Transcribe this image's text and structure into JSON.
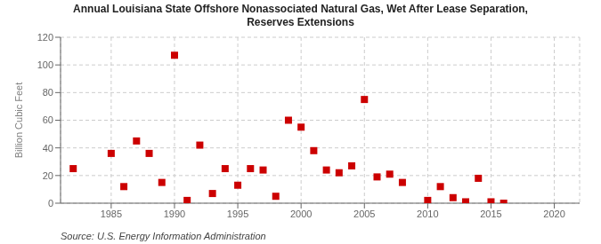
{
  "chart_data": {
    "type": "scatter",
    "title": "Annual Louisiana State Offshore Nonassociated Natural Gas, Wet After Lease Separation,\nReserves Extensions",
    "y_label": "Billion Cubic Feet",
    "annotations": [
      "Source: U.S. Energy Information Administration"
    ],
    "x": [
      1982,
      1985,
      1986,
      1987,
      1988,
      1989,
      1990,
      1991,
      1992,
      1993,
      1994,
      1995,
      1996,
      1997,
      1998,
      1999,
      2000,
      2001,
      2002,
      2003,
      2004,
      2005,
      2006,
      2007,
      2008,
      2010,
      2011,
      2012,
      2013,
      2014,
      2015,
      2016
    ],
    "values": [
      25,
      36,
      12,
      45,
      36,
      15,
      107,
      2,
      42,
      7,
      25,
      13,
      25,
      24,
      5,
      60,
      55,
      38,
      24,
      22,
      27,
      75,
      19,
      21,
      15,
      2,
      12,
      4,
      1,
      18,
      1,
      0
    ],
    "color": "#cc0000",
    "marker": "square",
    "xlim": [
      1981,
      2022
    ],
    "ylim": [
      0,
      120
    ],
    "xticks": [
      1985,
      1990,
      1995,
      2000,
      2005,
      2010,
      2015,
      2020
    ],
    "yticks": [
      0,
      20,
      40,
      60,
      80,
      100,
      120
    ],
    "grid": true
  }
}
